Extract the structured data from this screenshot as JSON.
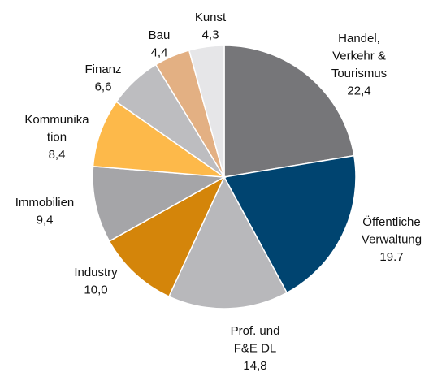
{
  "chart_data": {
    "type": "pie",
    "categories": [
      [
        "Handel,",
        "Verkehr &",
        "Tourismus"
      ],
      [
        "Öffentliche",
        "Verwaltung"
      ],
      [
        "Prof. und",
        "F&E DL"
      ],
      [
        "Industry"
      ],
      [
        "Immobilien"
      ],
      [
        "Kommunika",
        "tion"
      ],
      [
        "Finanz"
      ],
      [
        "Bau"
      ],
      [
        "Kunst"
      ]
    ],
    "values": [
      22.4,
      19.7,
      14.8,
      10.0,
      9.4,
      8.4,
      6.6,
      4.4,
      4.3
    ],
    "value_labels": [
      "22,4",
      "19.7",
      "14,8",
      "10,0",
      "9,4",
      "8,4",
      "6,6",
      "4,4",
      "4,3"
    ],
    "colors": [
      "#767679",
      "#004470",
      "#b8b8bb",
      "#d4850a",
      "#a5a5a8",
      "#fdb94a",
      "#bdbdc0",
      "#e3b083",
      "#e6e6e8"
    ]
  }
}
